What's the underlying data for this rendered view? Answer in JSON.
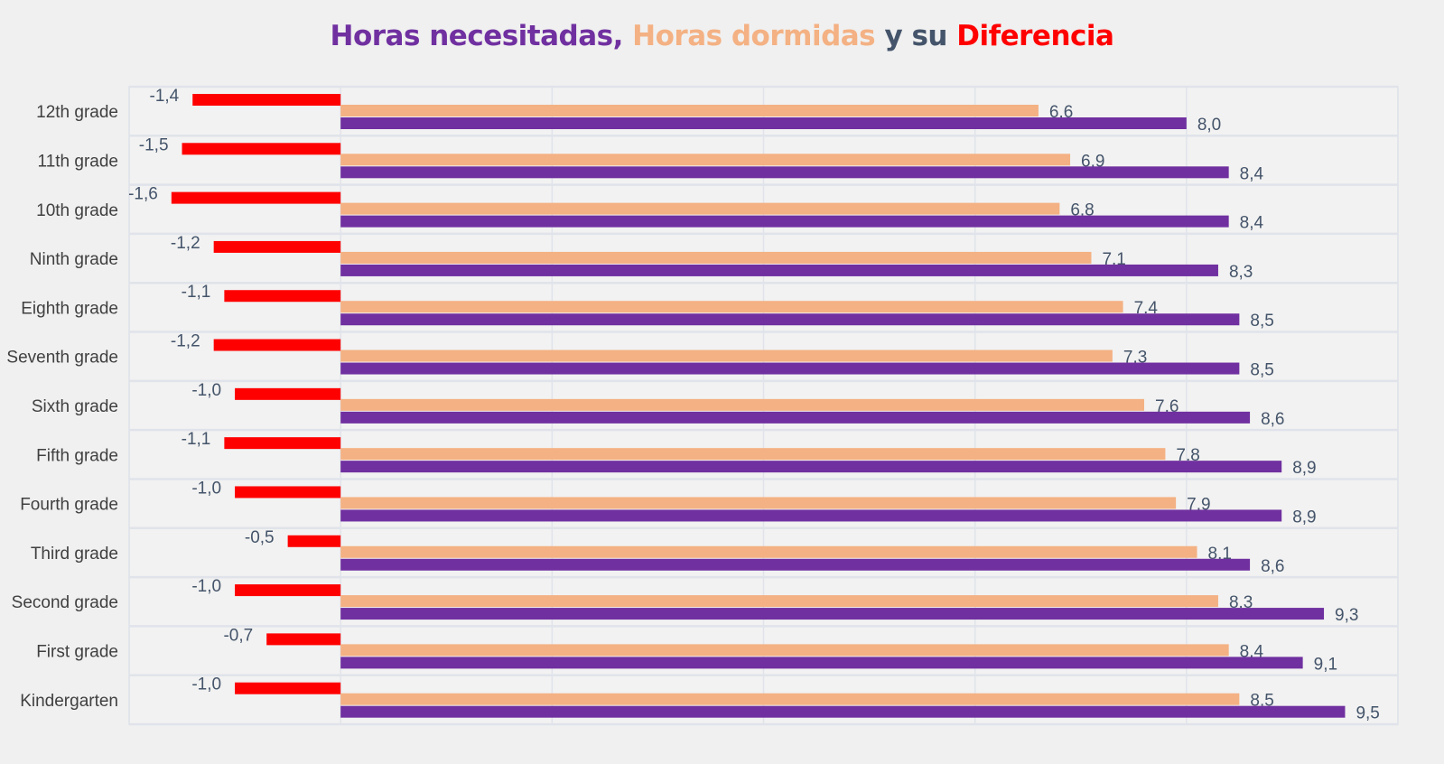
{
  "chart_data": {
    "type": "bar",
    "orientation": "horizontal",
    "title": [
      {
        "text": "Horas necesitadas,",
        "color": "#7030a0"
      },
      {
        "text": "Horas dormidas",
        "color": "#f4b183"
      },
      {
        "text": "y su",
        "color": "#44546a"
      },
      {
        "text": "Diferencia",
        "color": "#ff0000"
      }
    ],
    "categories": [
      "12th grade",
      "11th grade",
      "10th grade",
      "Ninth grade",
      "Eighth grade",
      "Seventh grade",
      "Sixth grade",
      "Fifth grade",
      "Fourth grade",
      "Third grade",
      "Second grade",
      "First grade",
      "Kindergarten"
    ],
    "series": [
      {
        "key": "diferencia",
        "color": "#ff0000",
        "values": [
          -1.4,
          -1.5,
          -1.6,
          -1.2,
          -1.1,
          -1.2,
          -1.0,
          -1.1,
          -1.0,
          -0.5,
          -1.0,
          -0.7,
          -1.0
        ],
        "labels": [
          "-1,4",
          "-1,5",
          "-1,6",
          "-1,2",
          "-1,1",
          "-1,2",
          "-1,0",
          "-1,1",
          "-1,0",
          "-0,5",
          "-1,0",
          "-0,7",
          "-1,0"
        ]
      },
      {
        "key": "dormidas",
        "color": "#f4b183",
        "values": [
          6.6,
          6.9,
          6.8,
          7.1,
          7.4,
          7.3,
          7.6,
          7.8,
          7.9,
          8.1,
          8.3,
          8.4,
          8.5
        ],
        "labels": [
          "6.6",
          "6.9",
          "6.8",
          "7.1",
          "7.4",
          "7.3",
          "7.6",
          "7.8",
          "7.9",
          "8.1",
          "8.3",
          "8.4",
          "8.5"
        ]
      },
      {
        "key": "necesitadas",
        "color": "#7030a0",
        "values": [
          8.0,
          8.4,
          8.4,
          8.3,
          8.5,
          8.5,
          8.6,
          8.9,
          8.9,
          8.6,
          9.3,
          9.1,
          9.5
        ],
        "labels": [
          "8,0",
          "8,4",
          "8,4",
          "8,3",
          "8,5",
          "8,5",
          "8,6",
          "8,9",
          "8,9",
          "8,6",
          "9,3",
          "9,1",
          "9,5"
        ]
      }
    ],
    "xlim": [
      -2,
      10
    ],
    "grid": true,
    "legend": "none"
  }
}
